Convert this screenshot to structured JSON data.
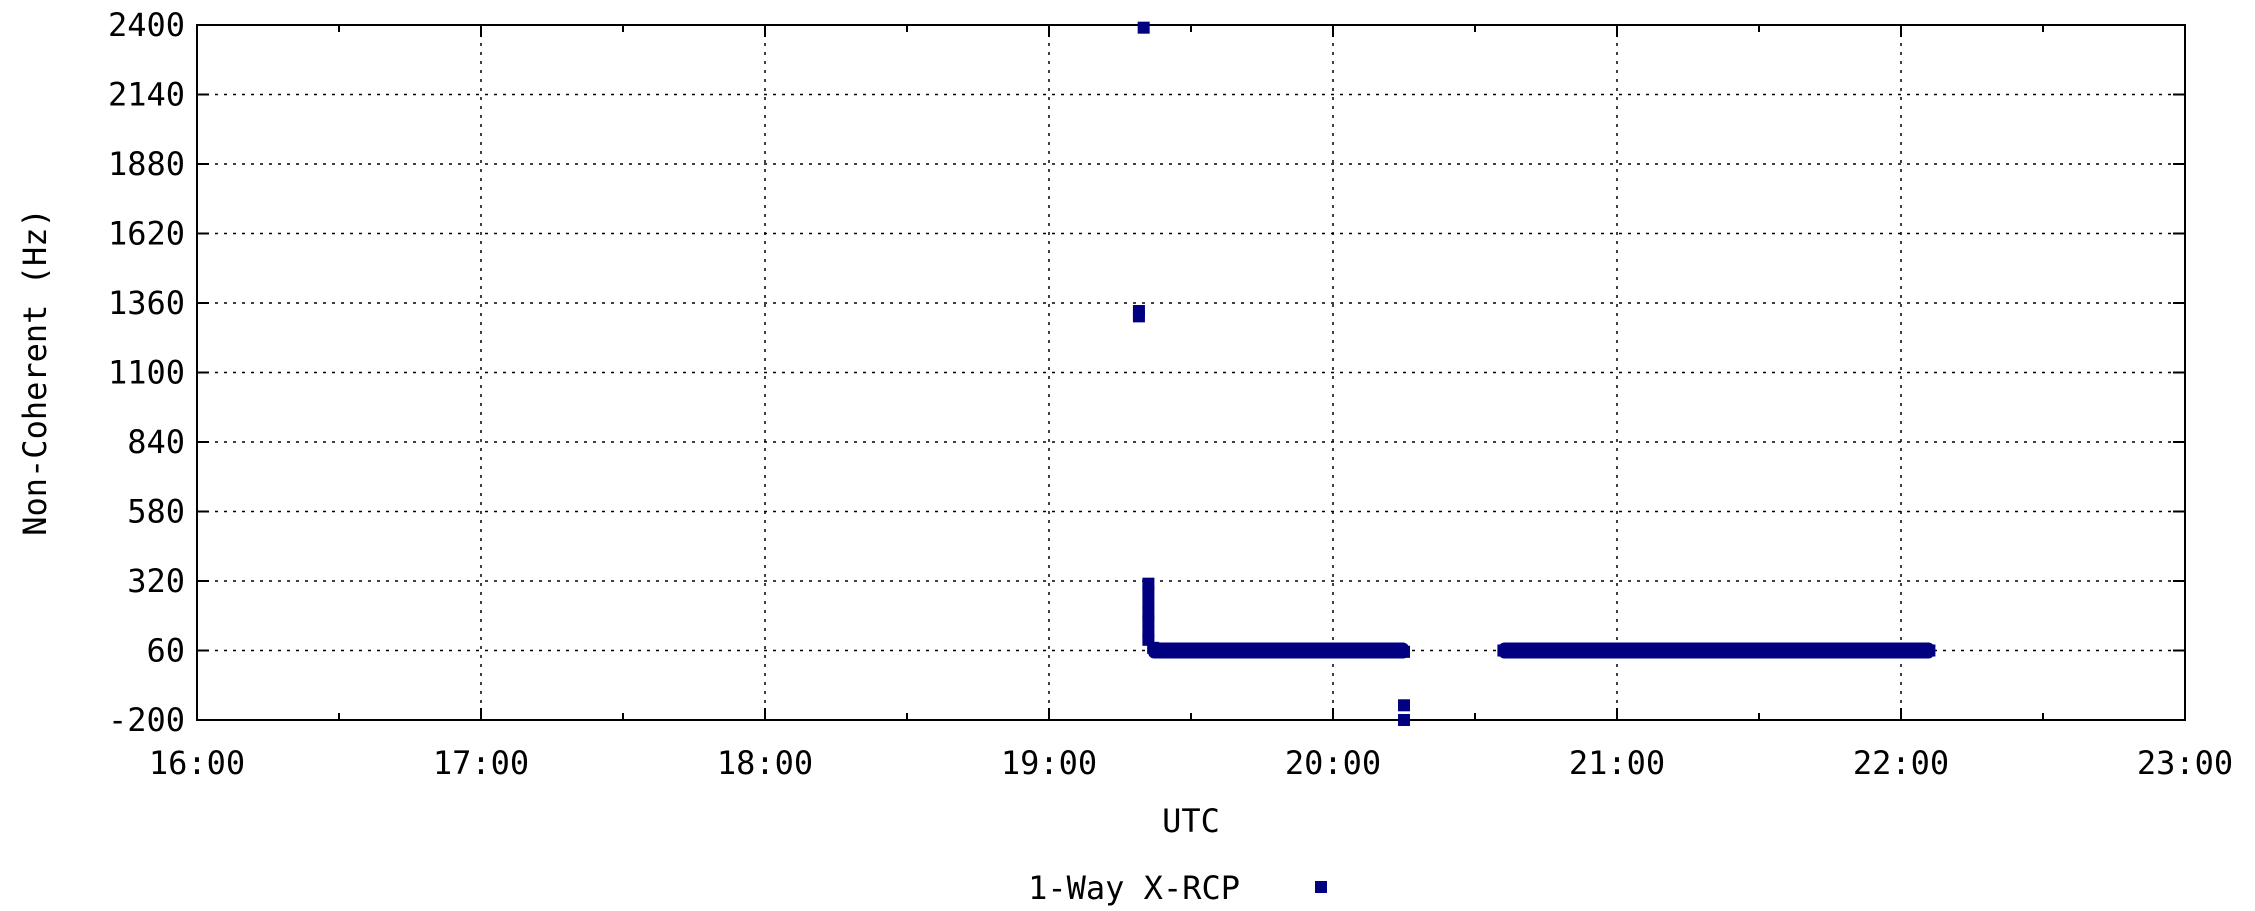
{
  "chart_data": {
    "type": "scatter",
    "xlabel": "UTC",
    "ylabel": "Non-Coherent (Hz)",
    "x_ticks": [
      "16:00",
      "17:00",
      "18:00",
      "19:00",
      "20:00",
      "21:00",
      "22:00",
      "23:00"
    ],
    "x_tick_hours": [
      16,
      17,
      18,
      19,
      20,
      21,
      22,
      23
    ],
    "xlim": [
      "16:00",
      "23:00"
    ],
    "ylim": [
      -200,
      2400
    ],
    "y_ticks": [
      2400,
      2140,
      1880,
      1620,
      1360,
      1100,
      840,
      580,
      320,
      60,
      -200
    ],
    "grid": true,
    "legend_position": "bottom-center",
    "series": [
      {
        "name": "1-Way X-RCP",
        "color": "#000080",
        "marker": "square",
        "points": [
          [
            "19:20",
            2390
          ],
          [
            "19:19",
            1330
          ],
          [
            "19:19",
            1310
          ],
          [
            "19:21",
            310
          ],
          [
            "19:21",
            280
          ],
          [
            "19:21",
            240
          ],
          [
            "19:21",
            200
          ],
          [
            "19:21",
            170
          ],
          [
            "19:21",
            130
          ],
          [
            "19:21",
            100
          ],
          [
            "19:22",
            70
          ],
          [
            "19:25",
            60
          ],
          [
            "19:30",
            60
          ],
          [
            "19:35",
            60
          ],
          [
            "19:40",
            60
          ],
          [
            "19:45",
            60
          ],
          [
            "19:50",
            60
          ],
          [
            "19:55",
            60
          ],
          [
            "20:00",
            60
          ],
          [
            "20:05",
            60
          ],
          [
            "20:10",
            60
          ],
          [
            "20:14",
            60
          ],
          [
            "20:15",
            55
          ],
          [
            "20:15",
            -145
          ],
          [
            "20:15",
            -200
          ],
          [
            "20:36",
            60
          ],
          [
            "20:40",
            60
          ],
          [
            "20:45",
            60
          ],
          [
            "20:50",
            60
          ],
          [
            "20:55",
            60
          ],
          [
            "21:00",
            60
          ],
          [
            "21:05",
            60
          ],
          [
            "21:10",
            60
          ],
          [
            "21:15",
            60
          ],
          [
            "21:20",
            60
          ],
          [
            "21:25",
            60
          ],
          [
            "21:30",
            60
          ],
          [
            "21:35",
            60
          ],
          [
            "21:40",
            60
          ],
          [
            "21:45",
            60
          ],
          [
            "21:50",
            60
          ],
          [
            "21:55",
            60
          ],
          [
            "22:00",
            60
          ],
          [
            "22:05",
            60
          ],
          [
            "22:06",
            60
          ]
        ],
        "segments": [
          {
            "x_start": "19:22",
            "x_end": "20:15",
            "y": 60
          },
          {
            "x_start": "20:36",
            "x_end": "22:06",
            "y": 60
          }
        ]
      }
    ]
  }
}
